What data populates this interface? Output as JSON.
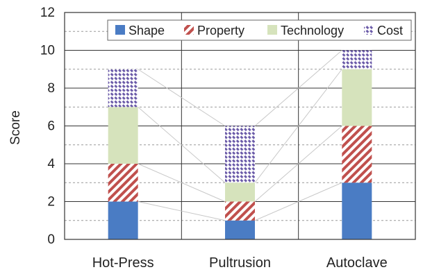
{
  "chart_data": {
    "type": "bar",
    "stacked": true,
    "categories": [
      "Hot-Press",
      "Pultrusion",
      "Autoclave"
    ],
    "series": [
      {
        "name": "Shape",
        "values": [
          2,
          1,
          3
        ],
        "color": "#4a7cc4",
        "pattern": "solid"
      },
      {
        "name": "Property",
        "values": [
          2,
          1,
          3
        ],
        "color": "#c0504d",
        "pattern": "diagonal-hatch"
      },
      {
        "name": "Technology",
        "values": [
          3,
          1,
          3
        ],
        "color": "#d6e3bc",
        "pattern": "solid"
      },
      {
        "name": "Cost",
        "values": [
          2,
          3,
          1
        ],
        "color": "#6a5aa8",
        "pattern": "dashed-diagonal-hatch"
      }
    ],
    "ylabel": "Score",
    "xlabel": "",
    "title": "",
    "ylim": [
      0,
      12
    ],
    "yticks": [
      "0",
      "2",
      "4",
      "6",
      "8",
      "10",
      "12"
    ],
    "grid": {
      "major": true,
      "minor_dashed": true
    },
    "legend": "top-right",
    "connector_lines": true
  }
}
